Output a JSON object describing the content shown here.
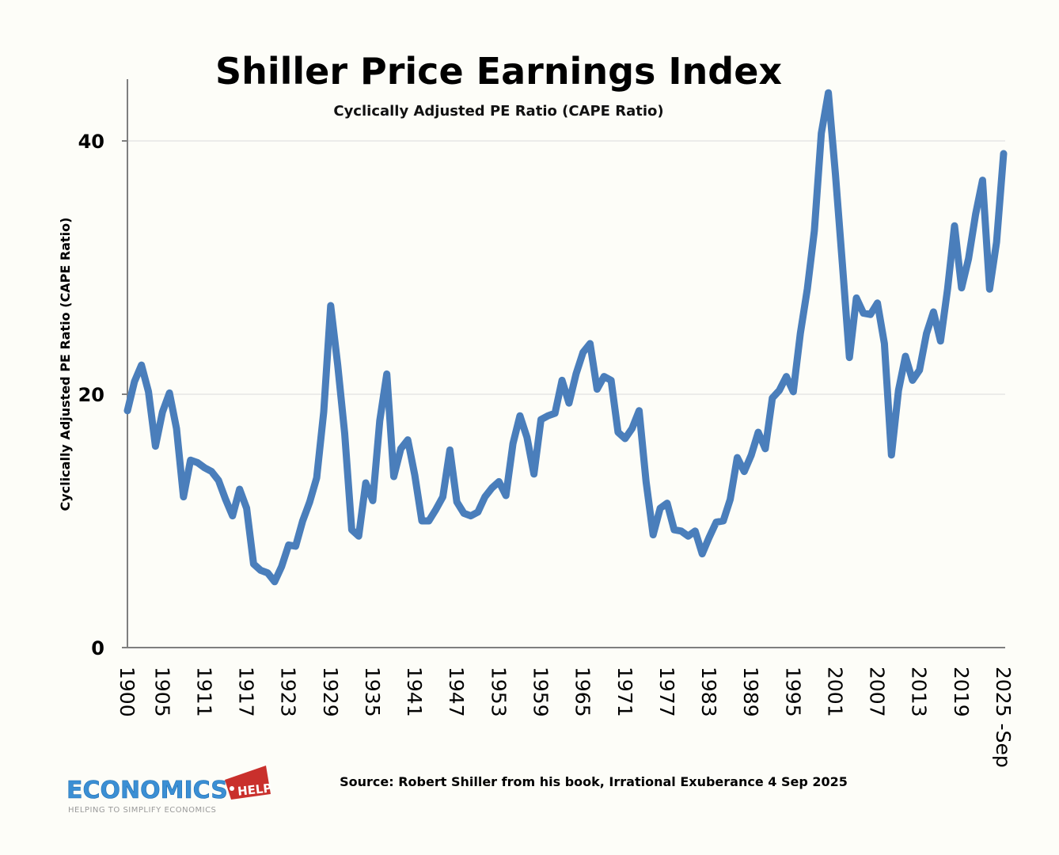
{
  "chart_data": {
    "type": "line",
    "title": "Shiller Price Earnings Index",
    "subtitle": "Cyclically Adjusted PE Ratio (CAPE Ratio)",
    "xlabel": "",
    "ylabel": "Cyclically Adjusted PE Ratio (CAPE Ratio)",
    "ylim": [
      0,
      45
    ],
    "yticks": [
      0,
      20,
      40
    ],
    "xlim": [
      1900,
      2025
    ],
    "xtick_labels": [
      {
        "year": 1900,
        "label": "1900"
      },
      {
        "year": 1905,
        "label": "1905"
      },
      {
        "year": 1911,
        "label": "1911"
      },
      {
        "year": 1917,
        "label": "1917"
      },
      {
        "year": 1923,
        "label": "1923"
      },
      {
        "year": 1929,
        "label": "1929"
      },
      {
        "year": 1935,
        "label": "1935"
      },
      {
        "year": 1941,
        "label": "1941"
      },
      {
        "year": 1947,
        "label": "1947"
      },
      {
        "year": 1953,
        "label": "1953"
      },
      {
        "year": 1959,
        "label": "1959"
      },
      {
        "year": 1965,
        "label": "1965"
      },
      {
        "year": 1971,
        "label": "1971"
      },
      {
        "year": 1977,
        "label": "1977"
      },
      {
        "year": 1983,
        "label": "1983"
      },
      {
        "year": 1989,
        "label": "1989"
      },
      {
        "year": 1995,
        "label": "1995"
      },
      {
        "year": 2001,
        "label": "2001"
      },
      {
        "year": 2007,
        "label": "2007"
      },
      {
        "year": 2013,
        "label": "2013"
      },
      {
        "year": 2019,
        "label": "2019"
      },
      {
        "year": 2025,
        "label": "2025 -Sep"
      }
    ],
    "grid": true,
    "legend": "none",
    "series": [
      {
        "name": "CAPE Ratio",
        "color": "#4a7ebb",
        "x": [
          1900,
          1901,
          1902,
          1903,
          1904,
          1905,
          1906,
          1907,
          1908,
          1909,
          1910,
          1911,
          1912,
          1913,
          1914,
          1915,
          1916,
          1917,
          1918,
          1919,
          1920,
          1921,
          1922,
          1923,
          1924,
          1925,
          1926,
          1927,
          1928,
          1929,
          1930,
          1931,
          1932,
          1933,
          1934,
          1935,
          1936,
          1937,
          1938,
          1939,
          1940,
          1941,
          1942,
          1943,
          1944,
          1945,
          1946,
          1947,
          1948,
          1949,
          1950,
          1951,
          1952,
          1953,
          1954,
          1955,
          1956,
          1957,
          1958,
          1959,
          1960,
          1961,
          1962,
          1963,
          1964,
          1965,
          1966,
          1967,
          1968,
          1969,
          1970,
          1971,
          1972,
          1973,
          1974,
          1975,
          1976,
          1977,
          1978,
          1979,
          1980,
          1981,
          1982,
          1983,
          1984,
          1985,
          1986,
          1987,
          1988,
          1989,
          1990,
          1991,
          1992,
          1993,
          1994,
          1995,
          1996,
          1997,
          1998,
          1999,
          2000,
          2001,
          2002,
          2003,
          2004,
          2005,
          2006,
          2007,
          2008,
          2009,
          2010,
          2011,
          2012,
          2013,
          2014,
          2015,
          2016,
          2017,
          2018,
          2019,
          2020,
          2021,
          2022,
          2023,
          2024,
          2025
        ],
        "values": [
          18.7,
          21.0,
          22.3,
          20.2,
          15.9,
          18.6,
          20.1,
          17.3,
          11.9,
          14.8,
          14.6,
          14.2,
          13.9,
          13.2,
          11.7,
          10.4,
          12.5,
          11.0,
          6.6,
          6.1,
          5.9,
          5.2,
          6.4,
          8.1,
          8.0,
          10.0,
          11.5,
          13.4,
          18.6,
          27.0,
          22.3,
          16.9,
          9.3,
          8.8,
          13.0,
          11.6,
          17.9,
          21.6,
          13.5,
          15.7,
          16.4,
          13.6,
          10.0,
          10.0,
          10.9,
          11.9,
          15.6,
          11.5,
          10.6,
          10.4,
          10.7,
          11.9,
          12.6,
          13.1,
          12.0,
          16.1,
          18.3,
          16.6,
          13.7,
          18.0,
          18.3,
          18.5,
          21.1,
          19.3,
          21.6,
          23.3,
          24.0,
          20.4,
          21.4,
          21.1,
          17.0,
          16.5,
          17.3,
          18.7,
          13.1,
          8.9,
          11.0,
          11.4,
          9.3,
          9.2,
          8.8,
          9.2,
          7.4,
          8.7,
          9.9,
          10.0,
          11.7,
          15.0,
          13.9,
          15.2,
          17.0,
          15.7,
          19.7,
          20.3,
          21.4,
          20.2,
          24.8,
          28.3,
          32.9,
          40.6,
          43.8,
          37.4,
          30.3,
          22.9,
          27.6,
          26.4,
          26.3,
          27.2,
          24.0,
          15.2,
          20.3,
          23.0,
          21.1,
          21.9,
          24.8,
          26.5,
          24.2,
          28.3,
          33.3,
          28.4,
          30.7,
          34.2,
          36.9,
          28.3,
          32.0,
          39.0
        ]
      }
    ]
  },
  "source_text": "Source: Robert Shiller from his book, Irrational Exuberance 4 Sep 2025",
  "logo": {
    "main": "ECONOMICS",
    "tag": "HELP",
    "tagline": "HELPING TO SIMPLIFY ECONOMICS",
    "main_color": "#3b8fd4",
    "tag_color": "#c9302c"
  }
}
